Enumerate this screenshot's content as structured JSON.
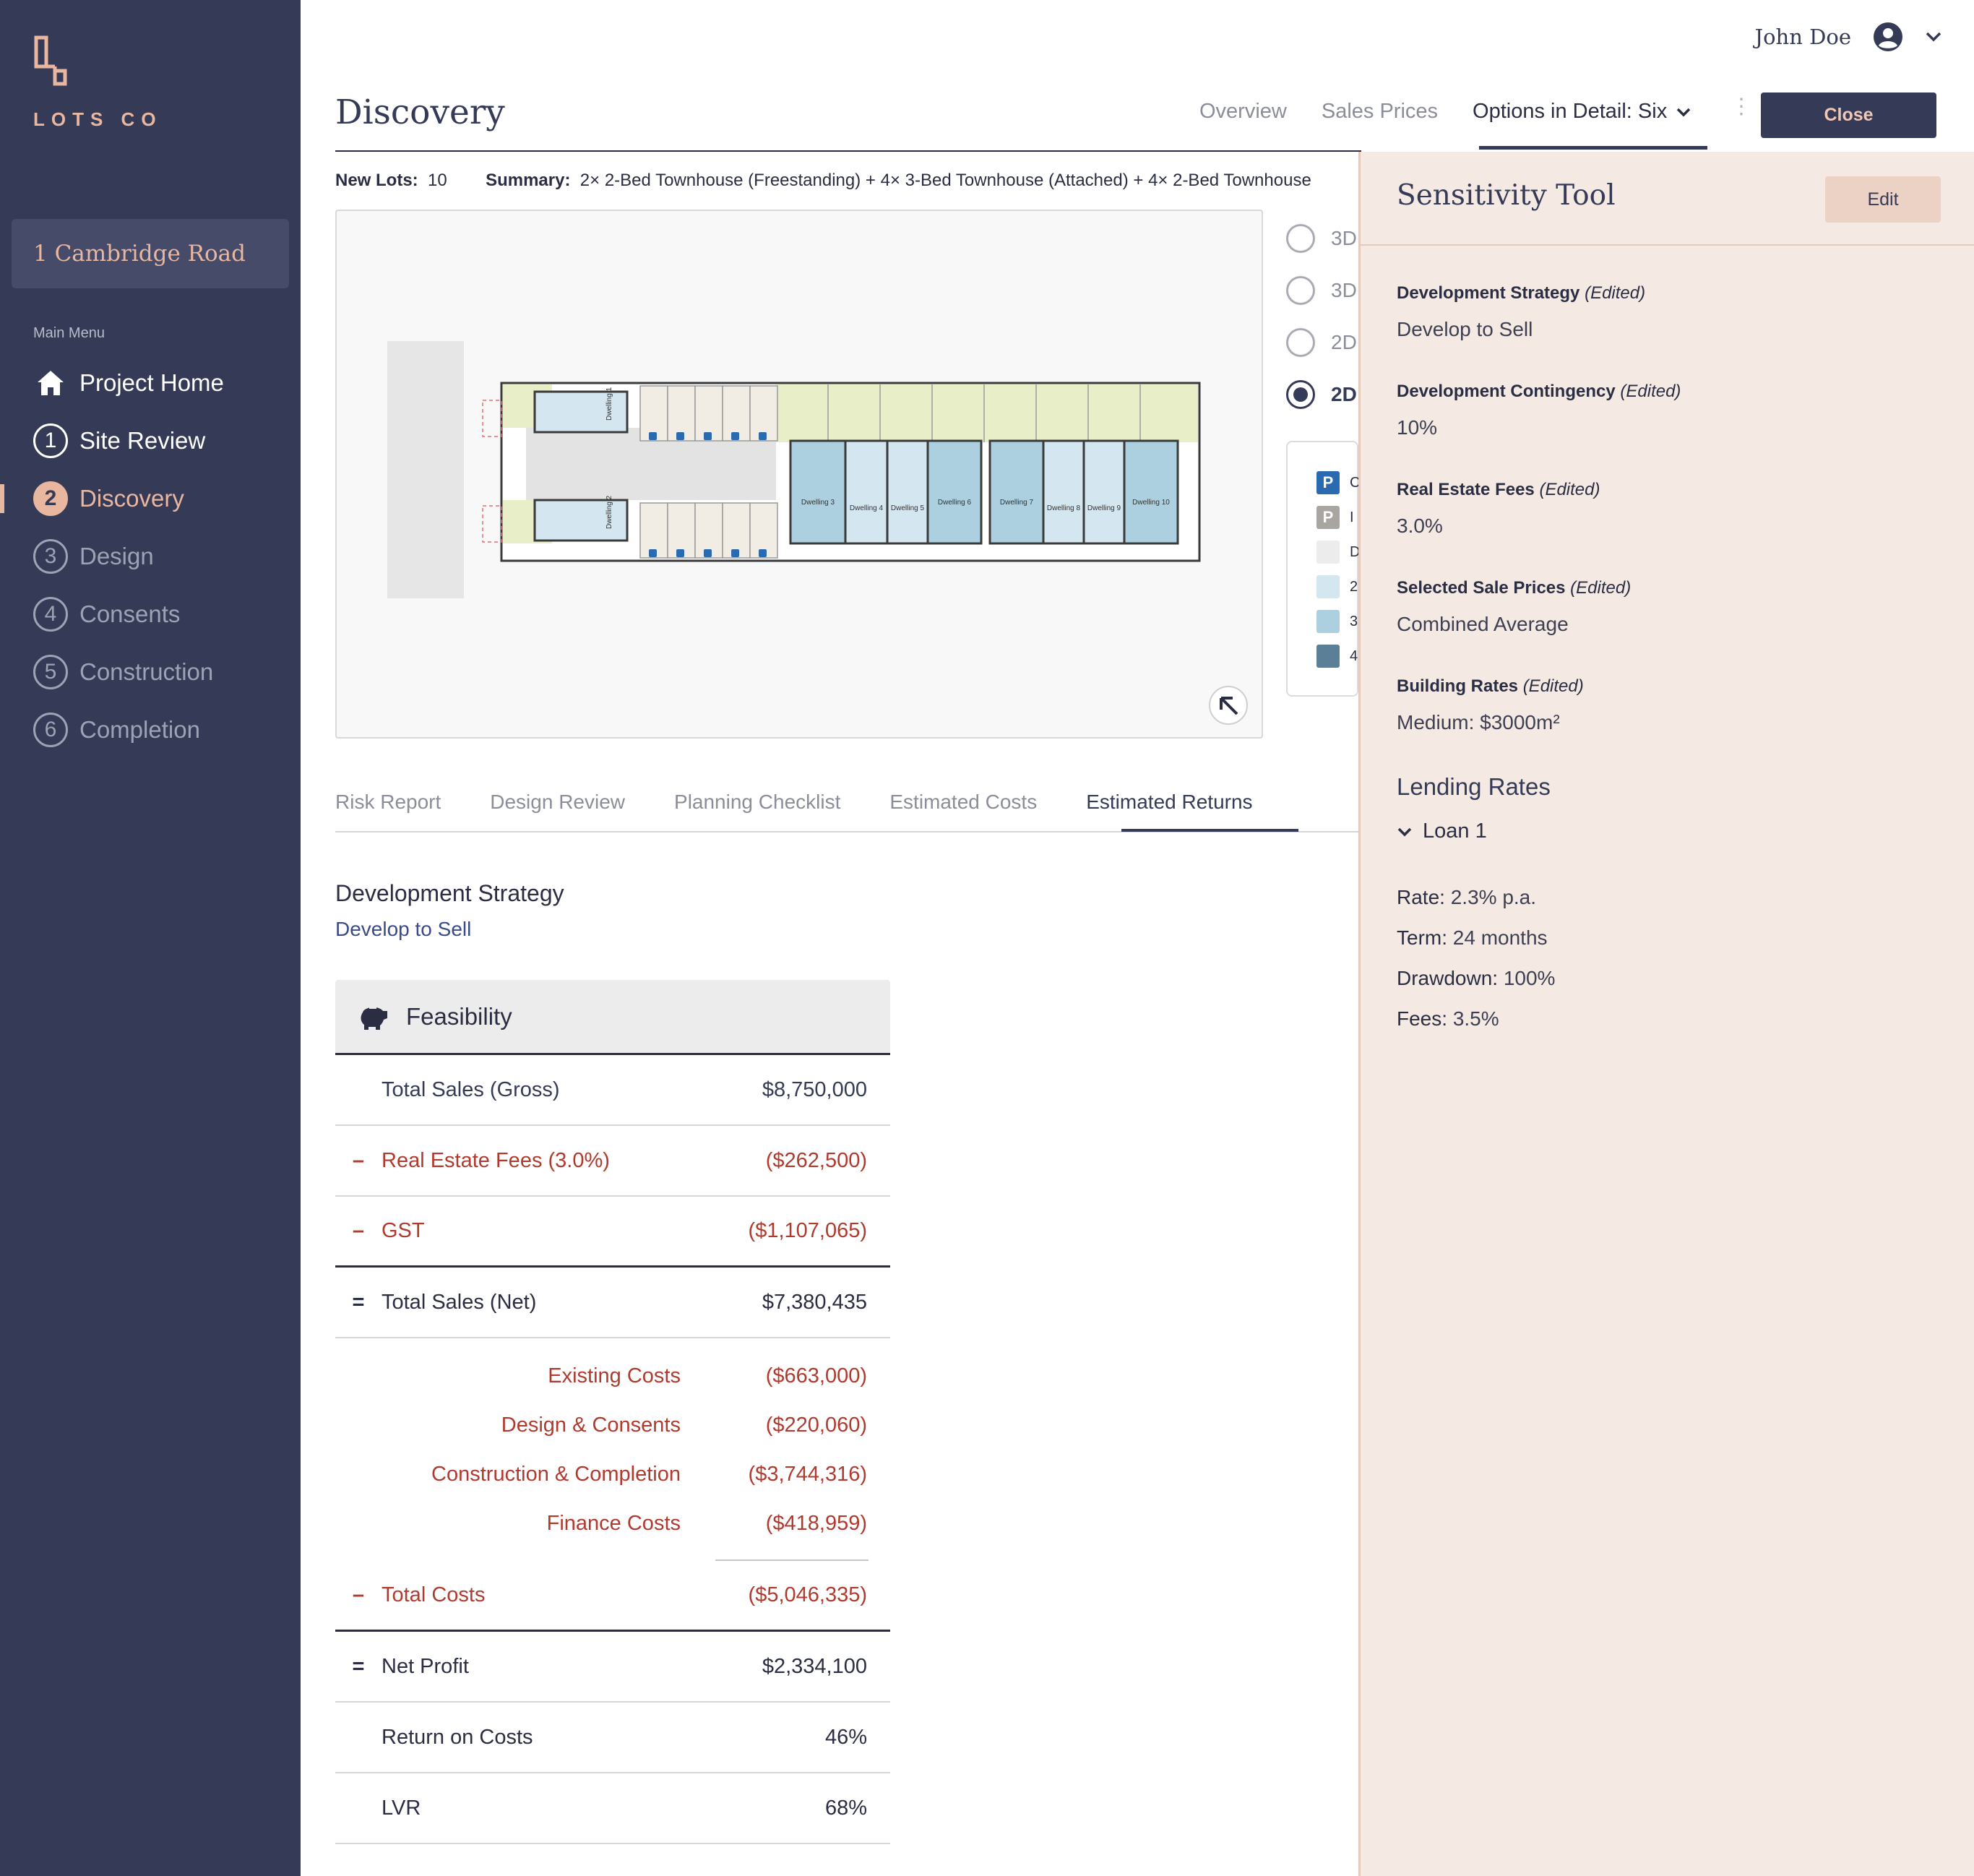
{
  "brand": {
    "name": "LOTS CO",
    "accent": "#e9b6a0",
    "sidebar_bg": "#353a56"
  },
  "project": {
    "name": "1 Cambridge Road"
  },
  "menu": {
    "heading": "Main Menu",
    "items": [
      {
        "label": "Project Home",
        "icon": "home-icon",
        "step": ""
      },
      {
        "label": "Site Review",
        "step": "1"
      },
      {
        "label": "Discovery",
        "step": "2"
      },
      {
        "label": "Design",
        "step": "3"
      },
      {
        "label": "Consents",
        "step": "4"
      },
      {
        "label": "Construction",
        "step": "5"
      },
      {
        "label": "Completion",
        "step": "6"
      }
    ]
  },
  "user": {
    "name": "John Doe"
  },
  "page": {
    "title": "Discovery"
  },
  "top_tabs": {
    "overview": "Overview",
    "sales_prices": "Sales Prices",
    "options": "Options in Detail: Six"
  },
  "close_label": "Close",
  "summary": {
    "new_lots_label": "New Lots:",
    "new_lots_value": "10",
    "summary_label": "Summary:",
    "summary_value": "2× 2-Bed Townhouse (Freestanding) + 4× 3-Bed Townhouse (Attached) + 4× 2-Bed Townhouse"
  },
  "view_options": [
    "3D",
    "3D",
    "2D",
    "2D"
  ],
  "legend": [
    {
      "swatch": "#2a6bb0",
      "letter": "C",
      "icon": "parking-icon"
    },
    {
      "swatch": "#a9a5a0",
      "letter": "I",
      "icon": "parking-icon"
    },
    {
      "swatch": "#ececec",
      "letter": "D"
    },
    {
      "swatch": "#d4e6ef",
      "letter": "2"
    },
    {
      "swatch": "#acd0e0",
      "letter": "3"
    },
    {
      "swatch": "#5a7f97",
      "letter": "4"
    }
  ],
  "section_tabs": [
    "Risk Report",
    "Design Review",
    "Planning Checklist",
    "Estimated Costs",
    "Estimated Returns"
  ],
  "strategy": {
    "title": "Development Strategy",
    "value": "Develop to Sell"
  },
  "feasibility": {
    "title": "Feasibility",
    "total_sales_gross": {
      "label": "Total Sales (Gross)",
      "value": "$8,750,000"
    },
    "real_estate_fees": {
      "op": "–",
      "label": "Real Estate Fees (3.0%)",
      "value": "($262,500)"
    },
    "gst": {
      "op": "–",
      "label": "GST",
      "value": "($1,107,065)"
    },
    "total_sales_net": {
      "op": "=",
      "label": "Total Sales (Net)",
      "value": "$7,380,435"
    },
    "costs": [
      {
        "label": "Existing Costs",
        "value": "($663,000)"
      },
      {
        "label": "Design & Consents",
        "value": "($220,060)"
      },
      {
        "label": "Construction & Completion",
        "value": "($3,744,316)"
      },
      {
        "label": "Finance Costs",
        "value": "($418,959)"
      }
    ],
    "total_costs": {
      "op": "–",
      "label": "Total Costs",
      "value": "($5,046,335)"
    },
    "net_profit": {
      "op": "=",
      "label": "Net Profit",
      "value": "$2,334,100"
    },
    "return_on_costs": {
      "label": "Return on Costs",
      "value": "46%"
    },
    "lvr": {
      "label": "LVR",
      "value": "68%"
    }
  },
  "sensitivity": {
    "title": "Sensitivity Tool",
    "edit_label": "Edit",
    "edited_tag": "(Edited)",
    "fields": [
      {
        "label": "Development Strategy",
        "value": "Develop to Sell"
      },
      {
        "label": "Development Contingency",
        "value": "10%"
      },
      {
        "label": "Real Estate Fees",
        "value": "3.0%"
      },
      {
        "label": "Selected Sale Prices",
        "value": "Combined Average"
      },
      {
        "label": "Building Rates",
        "value": "Medium: $3000m²"
      }
    ],
    "lending_title": "Lending Rates",
    "loan_label": "Loan 1",
    "loan": {
      "rate_label": "Rate:",
      "rate": "2.3% p.a.",
      "term_label": "Term:",
      "term": "24 months",
      "drawdown_label": "Drawdown:",
      "drawdown": "100%",
      "fees_label": "Fees:",
      "fees": "3.5%"
    }
  },
  "site_plan": {
    "parking_letter": "P",
    "dwellings": [
      "Dwelling 1",
      "Dwelling 2",
      "Dwelling 3",
      "Dwelling 4",
      "Dwelling 5",
      "Dwelling 6",
      "Dwelling 7",
      "Dwelling 8",
      "Dwelling 9",
      "Dwelling 10"
    ]
  }
}
